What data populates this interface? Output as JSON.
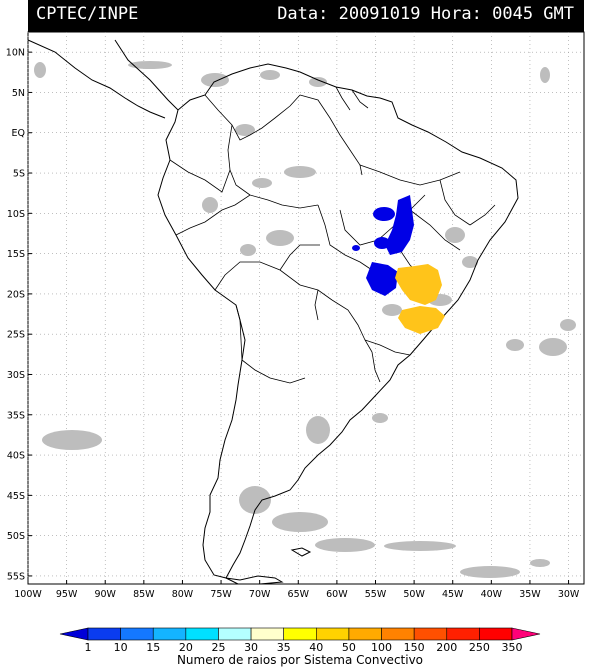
{
  "header": {
    "agency": "CPTEC/INPE",
    "datetime": "Data: 20091019 Hora: 0045 GMT"
  },
  "map": {
    "lat_labels": [
      "10N",
      "5N",
      "EQ",
      "5S",
      "10S",
      "15S",
      "20S",
      "25S",
      "30S",
      "35S",
      "40S",
      "45S",
      "50S",
      "55S"
    ],
    "lon_labels": [
      "100W",
      "95W",
      "90W",
      "85W",
      "80W",
      "75W",
      "70W",
      "65W",
      "60W",
      "55W",
      "50W",
      "45W",
      "40W",
      "35W",
      "30W"
    ],
    "lat_range": [
      -56,
      12.5
    ],
    "lon_range": [
      -100,
      -28
    ]
  },
  "colorbar": {
    "ticks": [
      "1",
      "10",
      "15",
      "20",
      "25",
      "30",
      "35",
      "40",
      "50",
      "100",
      "150",
      "200",
      "250",
      "350"
    ],
    "colors": [
      "#0000d8",
      "#0a3cf0",
      "#1478ff",
      "#14b4ff",
      "#00e0ff",
      "#b4ffff",
      "#ffffcc",
      "#ffff00",
      "#ffd200",
      "#ffaa00",
      "#ff8200",
      "#ff5000",
      "#ff2000",
      "#ff0000",
      "#ff0078"
    ],
    "caption": "Numero de raios por Sistema Convectivo"
  }
}
